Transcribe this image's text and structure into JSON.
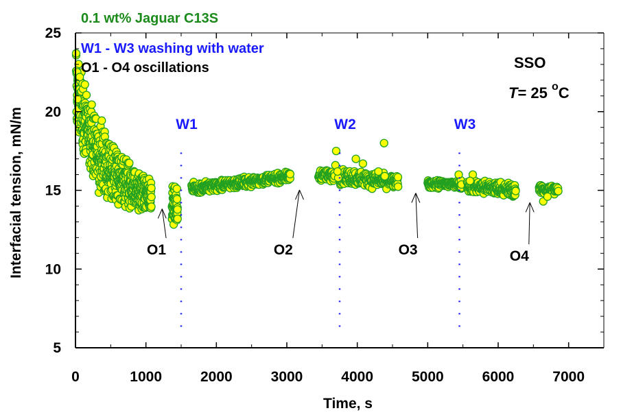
{
  "chart_data": {
    "type": "scatter",
    "title": "0.1 wt% Jaguar C13S",
    "legend_lines": [
      "W1 - W3 washing with water",
      "O1 - O4 oscillations"
    ],
    "xlabel": "Time, s",
    "ylabel": "Interfacial tension, mN/m",
    "xlim": [
      0,
      7500
    ],
    "ylim": [
      5,
      25
    ],
    "xticks": [
      0,
      1000,
      2000,
      3000,
      4000,
      5000,
      6000,
      7000
    ],
    "yticks": [
      5,
      10,
      15,
      20,
      25
    ],
    "grid": false,
    "annotations": {
      "oil": "SSO",
      "temperature_symbol": "T",
      "temperature_text": "= 25 ",
      "degree": "o",
      "unit": "C"
    },
    "washing": [
      {
        "label": "W1",
        "x": 1500
      },
      {
        "label": "W2",
        "x": 3750
      },
      {
        "label": "W3",
        "x": 5450
      }
    ],
    "oscillations": [
      {
        "label": "O1",
        "x": 1230,
        "y": 14.0,
        "label_x": 1150,
        "label_y": 11.1
      },
      {
        "label": "O2",
        "x": 3180,
        "y": 15.2,
        "label_x": 2950,
        "label_y": 11.1
      },
      {
        "label": "O3",
        "x": 4830,
        "y": 15.0,
        "label_x": 4720,
        "label_y": 11.1
      },
      {
        "label": "O4",
        "x": 6450,
        "y": 14.4,
        "label_x": 6300,
        "label_y": 10.7
      }
    ],
    "series": [
      {
        "segments": [
          {
            "x0": 10,
            "x1": 1080,
            "n": 620,
            "y_start": 21.5,
            "y_end": 14.7,
            "decay": 380,
            "spread_start": 3.6,
            "spread_end": 1.4,
            "edge": 0.12
          },
          {
            "x0": 1370,
            "x1": 1450,
            "n": 55,
            "y_start": 14.1,
            "y_end": 14.0,
            "decay": 0,
            "spread_start": 1.8,
            "spread_end": 1.5,
            "edge": 0
          },
          {
            "x0": 1650,
            "x1": 3050,
            "n": 420,
            "y_start": 15.1,
            "y_end": 15.9,
            "decay": 0,
            "spread_start": 0.55,
            "spread_end": 0.45,
            "edge": 0
          },
          {
            "x0": 3450,
            "x1": 3680,
            "n": 60,
            "y_start": 16.0,
            "y_end": 15.9,
            "decay": 0,
            "spread_start": 0.55,
            "spread_end": 0.55,
            "edge": 0
          },
          {
            "x0": 3750,
            "x1": 4580,
            "n": 240,
            "y_start": 15.9,
            "y_end": 15.5,
            "decay": 0,
            "spread_start": 0.8,
            "spread_end": 0.6,
            "edge": 0
          },
          {
            "x0": 5000,
            "x1": 5480,
            "n": 140,
            "y_start": 15.4,
            "y_end": 15.4,
            "decay": 0,
            "spread_start": 0.45,
            "spread_end": 0.45,
            "edge": 0
          },
          {
            "x0": 5560,
            "x1": 6250,
            "n": 210,
            "y_start": 15.3,
            "y_end": 15.0,
            "decay": 0,
            "spread_start": 0.7,
            "spread_end": 0.7,
            "edge": 0
          },
          {
            "x0": 6580,
            "x1": 6850,
            "n": 70,
            "y_start": 15.1,
            "y_end": 15.0,
            "decay": 0,
            "spread_start": 0.5,
            "spread_end": 0.5,
            "edge": 0
          }
        ],
        "extra_points": [
          [
            10,
            23.7
          ],
          [
            15,
            22.6
          ],
          [
            25,
            22.5
          ],
          [
            30,
            20.8
          ],
          [
            60,
            22.2
          ],
          [
            3700,
            17.5
          ],
          [
            3690,
            16.6
          ],
          [
            3980,
            17.0
          ],
          [
            4080,
            16.7
          ],
          [
            4380,
            18.0
          ],
          [
            4390,
            15.9
          ],
          [
            5440,
            16.0
          ],
          [
            5640,
            16.0
          ],
          [
            5600,
            15.6
          ],
          [
            6640,
            14.3
          ],
          [
            6700,
            14.6
          ],
          [
            1440,
            15.1
          ],
          [
            3730,
            15.8
          ],
          [
            3720,
            16.2
          ],
          [
            4300,
            16.2
          ]
        ]
      }
    ]
  },
  "colors": {
    "marker_fill": "#ffff00",
    "marker_edge": "#22a022",
    "title": "#1a8a1a",
    "washing": "#1a1aff",
    "text": "#000000"
  }
}
